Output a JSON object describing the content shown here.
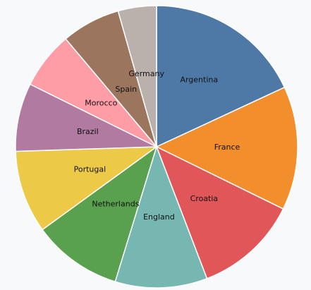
{
  "chart_data": {
    "type": "pie",
    "categories": [
      "Argentina",
      "France",
      "Croatia",
      "England",
      "Netherlands",
      "Portugal",
      "Brazil",
      "Morocco",
      "Spain",
      "Germany"
    ],
    "values": [
      18.5,
      14.5,
      12.2,
      10.8,
      10.5,
      9.7,
      8.0,
      6.7,
      6.9,
      4.5
    ],
    "colors": [
      "#4e79a7",
      "#f28e2b",
      "#e15759",
      "#76b7b2",
      "#59a14f",
      "#edc948",
      "#b07aa1",
      "#ff9da7",
      "#9c755f",
      "#bab0ac"
    ],
    "title": "",
    "legend": "none"
  }
}
